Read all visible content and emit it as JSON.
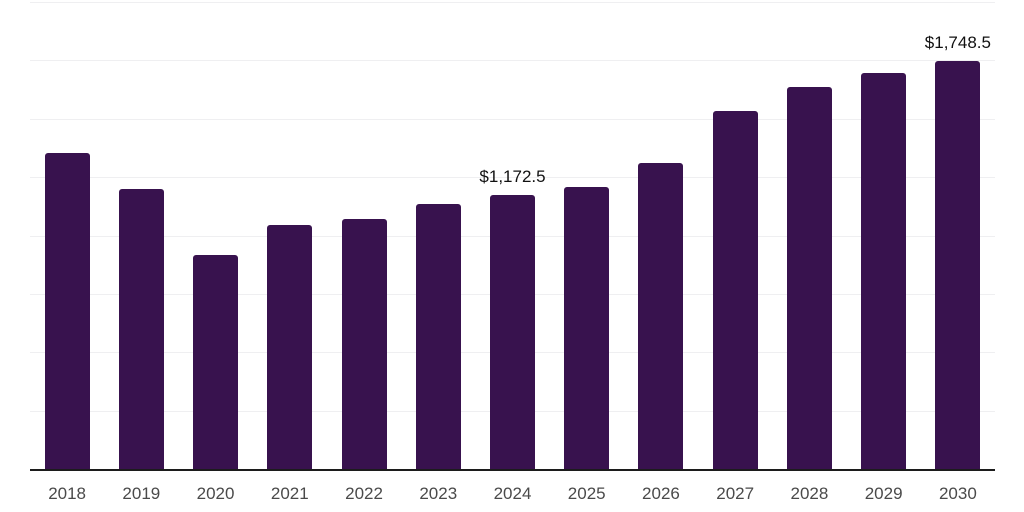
{
  "chart_data": {
    "type": "bar",
    "title": "",
    "xlabel": "",
    "ylabel": "",
    "categories": [
      "2018",
      "2019",
      "2020",
      "2021",
      "2022",
      "2023",
      "2024",
      "2025",
      "2026",
      "2027",
      "2028",
      "2029",
      "2030"
    ],
    "values": [
      1355,
      1198,
      917,
      1044,
      1071,
      1134,
      1172.5,
      1209,
      1309,
      1533,
      1637,
      1697,
      1748.5
    ],
    "labeled_points": [
      {
        "category": "2024",
        "label": "$1,172.5"
      },
      {
        "category": "2030",
        "label": "$1,748.5"
      }
    ],
    "ylim": [
      0,
      2000
    ],
    "grid_step": 250,
    "grid": "horizontal-only",
    "y_axis_tick_labels_visible": false,
    "legend_position": "none"
  },
  "colors": {
    "bar": "#38124E",
    "gridline": "#efeff1",
    "axis_line": "#1c1c1c",
    "tick_label": "#4a4a4a",
    "data_label": "#111111",
    "background": "#ffffff"
  }
}
